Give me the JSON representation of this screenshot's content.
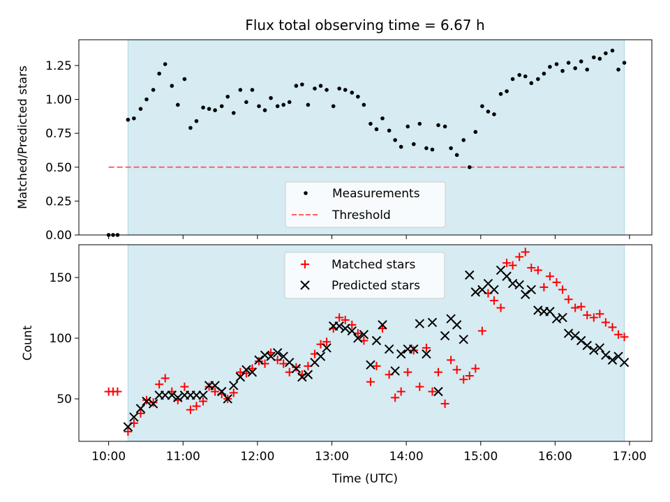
{
  "chart_data": [
    {
      "type": "scatter",
      "title": "Flux total observing time = 6.67 h",
      "xlabel": "",
      "ylabel": "Matched/Predicted stars",
      "xlim": [
        9.6,
        17.3
      ],
      "ylim": [
        0.0,
        1.44
      ],
      "xticks": [
        10,
        11,
        12,
        13,
        14,
        15,
        16,
        17
      ],
      "yticks": [
        0.0,
        0.25,
        0.5,
        0.75,
        1.0,
        1.25
      ],
      "ytick_labels": [
        "0.00",
        "0.25",
        "0.50",
        "0.75",
        "1.00",
        "1.25"
      ],
      "shaded_span": [
        10.26,
        16.93
      ],
      "shade_color": "#add8e6",
      "threshold": {
        "name": "Threshold",
        "value": 0.5,
        "x_range": [
          10.0,
          16.93
        ],
        "color": "#ff6060"
      },
      "legend": [
        "Measurements",
        "Threshold"
      ],
      "series": [
        {
          "name": "Measurements",
          "color": "#000000",
          "marker": "dot",
          "x": [
            10.0,
            10.06,
            10.12,
            10.26,
            10.34,
            10.43,
            10.51,
            10.6,
            10.68,
            10.76,
            10.85,
            10.93,
            11.02,
            11.1,
            11.18,
            11.27,
            11.35,
            11.43,
            11.52,
            11.6,
            11.68,
            11.77,
            11.85,
            11.93,
            12.02,
            12.1,
            12.18,
            12.27,
            12.35,
            12.43,
            12.52,
            12.6,
            12.68,
            12.77,
            12.85,
            12.93,
            13.02,
            13.1,
            13.18,
            13.27,
            13.35,
            13.43,
            13.52,
            13.6,
            13.68,
            13.77,
            13.85,
            13.93,
            14.02,
            14.1,
            14.18,
            14.27,
            14.35,
            14.43,
            14.52,
            14.6,
            14.68,
            14.77,
            14.85,
            14.93,
            15.02,
            15.1,
            15.18,
            15.27,
            15.35,
            15.43,
            15.52,
            15.6,
            15.68,
            15.77,
            15.85,
            15.93,
            16.02,
            16.1,
            16.18,
            16.27,
            16.35,
            16.43,
            16.52,
            16.6,
            16.68,
            16.77,
            16.85,
            16.93
          ],
          "y": [
            0.0,
            0.0,
            0.0,
            0.85,
            0.86,
            0.93,
            1.0,
            1.07,
            1.19,
            1.26,
            1.1,
            0.96,
            1.15,
            0.79,
            0.84,
            0.94,
            0.93,
            0.92,
            0.95,
            1.02,
            0.9,
            1.07,
            0.98,
            1.07,
            0.95,
            0.92,
            1.01,
            0.95,
            0.96,
            0.98,
            1.1,
            1.11,
            0.96,
            1.08,
            1.1,
            1.07,
            0.95,
            1.08,
            1.07,
            1.05,
            1.02,
            0.96,
            0.82,
            0.78,
            0.86,
            0.77,
            0.7,
            0.65,
            0.8,
            0.67,
            0.82,
            0.64,
            0.63,
            0.81,
            0.8,
            0.64,
            0.59,
            0.7,
            0.5,
            0.76,
            0.95,
            0.91,
            0.89,
            1.04,
            1.06,
            1.15,
            1.18,
            1.17,
            1.12,
            1.15,
            1.19,
            1.24,
            1.26,
            1.21,
            1.27,
            1.23,
            1.28,
            1.22,
            1.31,
            1.3,
            1.34,
            1.36,
            1.22,
            1.27
          ]
        }
      ]
    },
    {
      "type": "scatter",
      "title": "",
      "xlabel": "Time (UTC)",
      "ylabel": "Count",
      "xlim": [
        9.6,
        17.3
      ],
      "ylim": [
        15,
        177
      ],
      "xticks": [
        10,
        11,
        12,
        13,
        14,
        15,
        16,
        17
      ],
      "xtick_labels": [
        "10:00",
        "11:00",
        "12:00",
        "13:00",
        "14:00",
        "15:00",
        "16:00",
        "17:00"
      ],
      "yticks": [
        50,
        100,
        150
      ],
      "ytick_labels": [
        "50",
        "100",
        "150"
      ],
      "shaded_span": [
        10.26,
        16.93
      ],
      "shade_color": "#add8e6",
      "legend": [
        "Matched stars",
        "Predicted stars"
      ],
      "series": [
        {
          "name": "Matched stars",
          "color": "#ff0000",
          "marker": "plus",
          "x": [
            10.0,
            10.06,
            10.12,
            10.26,
            10.34,
            10.43,
            10.51,
            10.6,
            10.68,
            10.76,
            10.85,
            10.93,
            11.02,
            11.1,
            11.18,
            11.27,
            11.35,
            11.43,
            11.52,
            11.6,
            11.68,
            11.77,
            11.85,
            11.93,
            12.02,
            12.1,
            12.18,
            12.27,
            12.35,
            12.43,
            12.52,
            12.6,
            12.68,
            12.77,
            12.85,
            12.93,
            13.02,
            13.1,
            13.18,
            13.27,
            13.35,
            13.43,
            13.52,
            13.6,
            13.68,
            13.77,
            13.85,
            13.93,
            14.02,
            14.1,
            14.18,
            14.27,
            14.35,
            14.43,
            14.52,
            14.6,
            14.68,
            14.77,
            14.85,
            14.93,
            15.02,
            15.1,
            15.18,
            15.27,
            15.35,
            15.43,
            15.52,
            15.6,
            15.68,
            15.77,
            15.85,
            15.93,
            16.02,
            16.1,
            16.18,
            16.27,
            16.35,
            16.43,
            16.52,
            16.6,
            16.68,
            16.77,
            16.85,
            16.93
          ],
          "y": [
            56,
            56,
            56,
            23,
            30,
            38,
            49,
            47,
            62,
            67,
            56,
            49,
            60,
            41,
            44,
            48,
            60,
            56,
            54,
            50,
            55,
            72,
            71,
            75,
            81,
            79,
            88,
            82,
            79,
            72,
            76,
            70,
            77,
            87,
            95,
            97,
            108,
            117,
            115,
            111,
            104,
            98,
            64,
            77,
            108,
            70,
            51,
            56,
            72,
            90,
            60,
            92,
            56,
            72,
            46,
            82,
            74,
            66,
            69,
            75,
            106,
            137,
            131,
            125,
            162,
            160,
            167,
            171,
            158,
            156,
            142,
            151,
            146,
            140,
            132,
            125,
            126,
            119,
            117,
            120,
            113,
            109,
            103,
            101
          ]
        },
        {
          "name": "Predicted stars",
          "color": "#000000",
          "marker": "x",
          "x": [
            10.26,
            10.34,
            10.43,
            10.51,
            10.6,
            10.68,
            10.76,
            10.85,
            10.93,
            11.02,
            11.1,
            11.18,
            11.27,
            11.35,
            11.43,
            11.52,
            11.6,
            11.68,
            11.77,
            11.85,
            11.93,
            12.02,
            12.1,
            12.18,
            12.27,
            12.35,
            12.43,
            12.52,
            12.6,
            12.68,
            12.77,
            12.85,
            12.93,
            13.02,
            13.1,
            13.18,
            13.27,
            13.35,
            13.43,
            13.52,
            13.6,
            13.68,
            13.77,
            13.85,
            13.93,
            14.02,
            14.1,
            14.18,
            14.27,
            14.35,
            14.43,
            14.52,
            14.6,
            14.68,
            14.77,
            14.85,
            14.93,
            15.02,
            15.1,
            15.18,
            15.27,
            15.35,
            15.43,
            15.52,
            15.6,
            15.68,
            15.77,
            15.85,
            15.93,
            16.02,
            16.1,
            16.18,
            16.27,
            16.35,
            16.43,
            16.52,
            16.6,
            16.68,
            16.77,
            16.85,
            16.93
          ],
          "y": [
            27,
            35,
            42,
            48,
            46,
            53,
            53,
            53,
            51,
            53,
            53,
            53,
            53,
            61,
            61,
            56,
            50,
            61,
            68,
            74,
            72,
            82,
            86,
            85,
            88,
            85,
            80,
            75,
            68,
            70,
            80,
            85,
            92,
            110,
            110,
            108,
            106,
            100,
            103,
            78,
            98,
            111,
            91,
            73,
            87,
            91,
            91,
            112,
            87,
            113,
            56,
            102,
            116,
            111,
            99,
            152,
            138,
            140,
            145,
            140,
            156,
            151,
            145,
            144,
            136,
            140,
            123,
            122,
            122,
            116,
            117,
            104,
            102,
            98,
            94,
            90,
            92,
            86,
            82,
            85,
            80
          ]
        }
      ]
    }
  ]
}
